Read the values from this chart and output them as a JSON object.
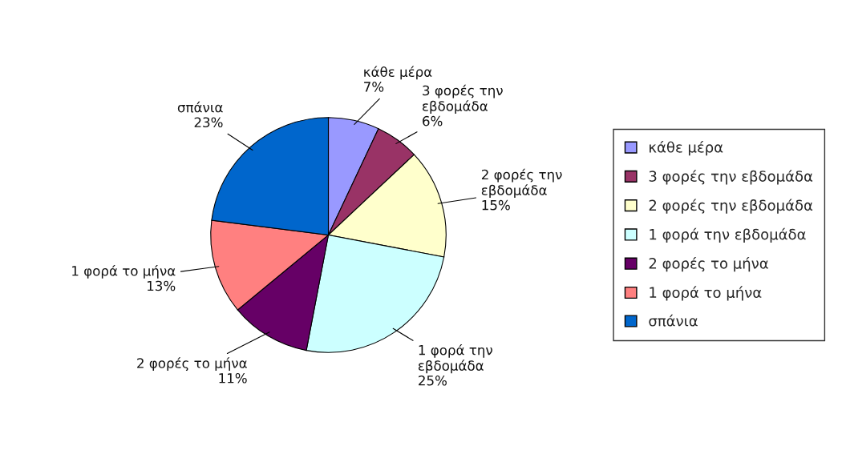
{
  "chart_data": {
    "type": "pie",
    "categories": [
      "κάθε μέρα",
      "3 φορές την εβδομάδα",
      "2 φορές την εβδομάδα",
      "1 φορά την εβδομάδα",
      "2 φορές το μήνα",
      "1 φορά το μήνα",
      "σπάνια"
    ],
    "values": [
      7,
      6,
      15,
      25,
      11,
      13,
      23
    ],
    "colors": [
      "#9999ff",
      "#993366",
      "#ffffcc",
      "#ccffff",
      "#660066",
      "#ff8080",
      "#0066cc"
    ],
    "value_labels": [
      "κάθε μέρα\n7%",
      "3 φορές την\nεβδομάδα\n6%",
      "2 φορές την\nεβδομάδα\n15%",
      "1 φορά την\nεβδομάδα\n25%",
      "2 φορές το μήνα\n11%",
      "1 φορά το μήνα\n13%",
      "σπάνια\n23%"
    ],
    "legend": "right"
  }
}
